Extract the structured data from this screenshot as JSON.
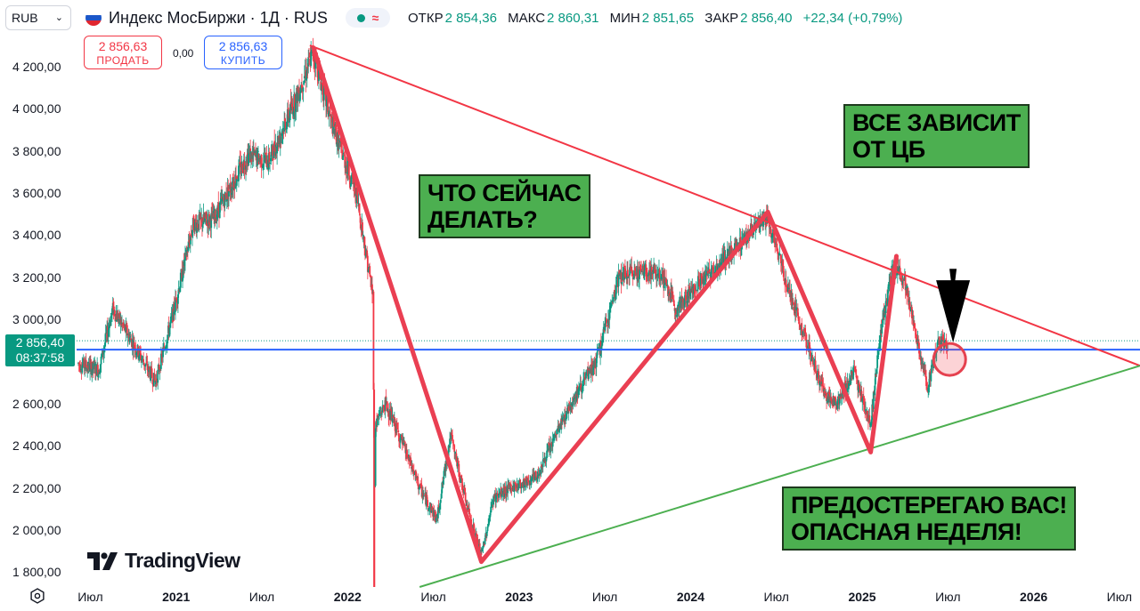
{
  "header": {
    "currency": "RUB",
    "symbol_title": "Индекс МосБиржи · 1Д · RUS",
    "flag_colors": [
      "#ffffff",
      "#1c57c9",
      "#e0262f"
    ],
    "ohlc": {
      "open_label": "ОТКР",
      "open": "2 854,36",
      "high_label": "МАКС",
      "high": "2 860,31",
      "low_label": "МИН",
      "low": "2 851,65",
      "close_label": "ЗАКР",
      "close": "2 856,40",
      "change": "+22,34 (+0,79%)"
    },
    "sell": {
      "price": "2 856,63",
      "label": "ПРОДАТЬ"
    },
    "buy": {
      "price": "2 856,63",
      "label": "КУПИТЬ"
    },
    "spread": "0,00"
  },
  "price_label": {
    "price": "2 856,40",
    "countdown": "08:37:58"
  },
  "annotations": {
    "what_now": [
      "ЧТО СЕЙЧАС",
      "ДЕЛАТЬ?"
    ],
    "depends_cb": [
      "ВСЕ ЗАВИСИТ",
      "ОТ ЦБ"
    ],
    "warning": [
      "ПРЕДОСТЕРЕГАЮ ВАС!",
      "ОПАСНАЯ НЕДЕЛЯ!"
    ]
  },
  "brand": {
    "name": "TradingView"
  },
  "colors": {
    "up": "#089981",
    "down": "#f23645",
    "accent_blue": "#2962ff",
    "annotation_green": "#4caf50"
  },
  "chart_data": {
    "type": "candlestick",
    "title": "Индекс МосБиржи · 1Д · RUS",
    "ylim": [
      1730,
      4330
    ],
    "y_ticks": [
      4200,
      4000,
      3800,
      3600,
      3400,
      3200,
      3000,
      2600,
      2400,
      2200,
      2000,
      1800
    ],
    "y_tick_labels": [
      "4 200,00",
      "4 000,00",
      "3 800,00",
      "3 600,00",
      "3 400,00",
      "3 200,00",
      "3 000,00",
      "2 600,00",
      "2 400,00",
      "2 200,00",
      "2 000,00",
      "1 800,00"
    ],
    "x_ticks": [
      {
        "label": "Июл",
        "t": 2020.5,
        "bold": false
      },
      {
        "label": "2021",
        "t": 2021.0,
        "bold": true
      },
      {
        "label": "Июл",
        "t": 2021.5,
        "bold": false
      },
      {
        "label": "2022",
        "t": 2022.0,
        "bold": true
      },
      {
        "label": "Июл",
        "t": 2022.5,
        "bold": false
      },
      {
        "label": "2023",
        "t": 2023.0,
        "bold": true
      },
      {
        "label": "Июл",
        "t": 2023.5,
        "bold": false
      },
      {
        "label": "2024",
        "t": 2024.0,
        "bold": true
      },
      {
        "label": "Июл",
        "t": 2024.5,
        "bold": false
      },
      {
        "label": "2025",
        "t": 2025.0,
        "bold": true
      },
      {
        "label": "Июл",
        "t": 2025.5,
        "bold": false
      },
      {
        "label": "2026",
        "t": 2026.0,
        "bold": true
      },
      {
        "label": "Июл",
        "t": 2026.5,
        "bold": false
      }
    ],
    "xlim": [
      2020.42,
      2026.62
    ],
    "price_path": [
      [
        2020.43,
        2790
      ],
      [
        2020.55,
        2760
      ],
      [
        2020.63,
        3050
      ],
      [
        2020.74,
        2900
      ],
      [
        2020.88,
        2700
      ],
      [
        2020.98,
        3020
      ],
      [
        2021.1,
        3450
      ],
      [
        2021.22,
        3480
      ],
      [
        2021.42,
        3780
      ],
      [
        2021.54,
        3750
      ],
      [
        2021.7,
        4050
      ],
      [
        2021.8,
        4270
      ],
      [
        2021.9,
        3950
      ],
      [
        2022.05,
        3600
      ],
      [
        2022.15,
        3100
      ],
      [
        2022.16,
        2500
      ],
      [
        2022.22,
        2600
      ],
      [
        2022.3,
        2450
      ],
      [
        2022.42,
        2200
      ],
      [
        2022.52,
        2050
      ],
      [
        2022.6,
        2450
      ],
      [
        2022.7,
        2100
      ],
      [
        2022.78,
        1880
      ],
      [
        2022.85,
        2150
      ],
      [
        2022.95,
        2200
      ],
      [
        2023.1,
        2250
      ],
      [
        2023.3,
        2600
      ],
      [
        2023.45,
        2800
      ],
      [
        2023.58,
        3200
      ],
      [
        2023.7,
        3230
      ],
      [
        2023.82,
        3220
      ],
      [
        2023.92,
        3050
      ],
      [
        2024.05,
        3180
      ],
      [
        2024.22,
        3300
      ],
      [
        2024.35,
        3420
      ],
      [
        2024.45,
        3480
      ],
      [
        2024.55,
        3200
      ],
      [
        2024.65,
        2950
      ],
      [
        2024.78,
        2650
      ],
      [
        2024.85,
        2600
      ],
      [
        2024.95,
        2750
      ],
      [
        2025.05,
        2500
      ],
      [
        2025.1,
        2900
      ],
      [
        2025.18,
        3250
      ],
      [
        2025.25,
        3180
      ],
      [
        2025.32,
        2900
      ],
      [
        2025.38,
        2680
      ],
      [
        2025.44,
        2900
      ],
      [
        2025.5,
        2856
      ]
    ],
    "current_price": 2856.4,
    "trend_lines": [
      {
        "name": "resistance",
        "color": "#f23645",
        "points": [
          [
            2021.78,
            4300
          ],
          [
            2026.62,
            2780
          ]
        ]
      },
      {
        "name": "support",
        "color": "#4caf50",
        "points": [
          [
            2022.42,
            1730
          ],
          [
            2026.62,
            2780
          ]
        ]
      }
    ],
    "zigzag": [
      [
        2021.8,
        4290
      ],
      [
        2022.78,
        1850
      ],
      [
        2024.45,
        3510
      ],
      [
        2025.05,
        2370
      ],
      [
        2025.2,
        3300
      ]
    ],
    "markers": [
      {
        "name": "focus-circle",
        "t": 2025.51,
        "price": 2810
      }
    ],
    "arrow": {
      "from": [
        2025.53,
        3240
      ],
      "to": [
        2025.53,
        2890
      ]
    }
  }
}
